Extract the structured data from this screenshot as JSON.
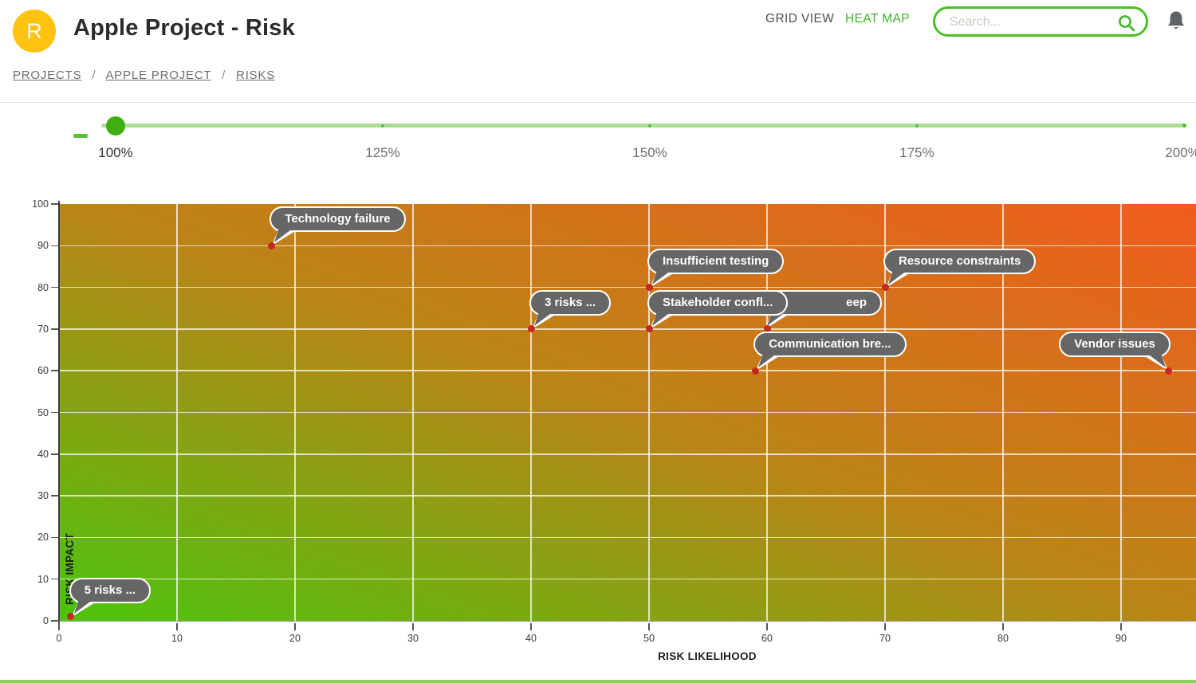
{
  "header": {
    "avatar_letter": "R",
    "title": "Apple Project - Risk",
    "breadcrumb": [
      "PROJECTS",
      "APPLE PROJECT",
      "RISKS"
    ],
    "breadcrumb_separator": "/",
    "view_tabs": [
      {
        "label": "GRID VIEW",
        "active": false
      },
      {
        "label": "HEAT MAP",
        "active": true
      }
    ],
    "search": {
      "placeholder": "Search...",
      "icon": "search-icon"
    },
    "icons": [
      "bell-icon"
    ],
    "colors": {
      "avatar_bg": "#FFC20E",
      "active_tab": "#3CB528",
      "search_border": "#47C120",
      "bell": "#5F6368"
    }
  },
  "zoom_slider": {
    "current_value": "100%",
    "tick_labels": [
      "100%",
      "125%",
      "150%",
      "175%",
      "200%"
    ],
    "colors": {
      "handle": "#3FAE11",
      "track": "#ABDC8F"
    }
  },
  "chart_data": {
    "type": "scatter",
    "title": "",
    "xlabel": "RISK LIKELIHOOD",
    "ylabel": "RISK IMPACT",
    "xlim": [
      0,
      96
    ],
    "ylim": [
      0,
      100
    ],
    "x_ticks": [
      0,
      10,
      20,
      30,
      40,
      50,
      60,
      70,
      80,
      90
    ],
    "y_ticks": [
      0,
      10,
      20,
      30,
      40,
      50,
      60,
      70,
      80,
      90,
      100
    ],
    "grid": true,
    "legend": "none",
    "heat_gradient": {
      "low": "#4CC40E",
      "mid": "#BA8517",
      "high": "#F25B1C",
      "direction": "to top right"
    },
    "point_color": "#C4281E",
    "bubble_style": {
      "bg": "#666666",
      "border": "#FFFFFF",
      "text": "#FFFFFF"
    },
    "points": [
      {
        "x": 1,
        "y": 1,
        "label": "5 risks ..."
      },
      {
        "x": 18,
        "y": 90,
        "label": "Technology failure"
      },
      {
        "x": 40,
        "y": 70,
        "label": "3 risks ..."
      },
      {
        "x": 50,
        "y": 80,
        "label": "Insufficient testing"
      },
      {
        "x": 50,
        "y": 70,
        "label": "Stakeholder confl..."
      },
      {
        "x": 60,
        "y": 70,
        "label": "eep",
        "partially_hidden": true
      },
      {
        "x": 59,
        "y": 60,
        "label": "Communication bre..."
      },
      {
        "x": 70,
        "y": 80,
        "label": "Resource constraints"
      },
      {
        "x": 94,
        "y": 60,
        "label": "Vendor issues",
        "label_side": "left"
      }
    ]
  }
}
